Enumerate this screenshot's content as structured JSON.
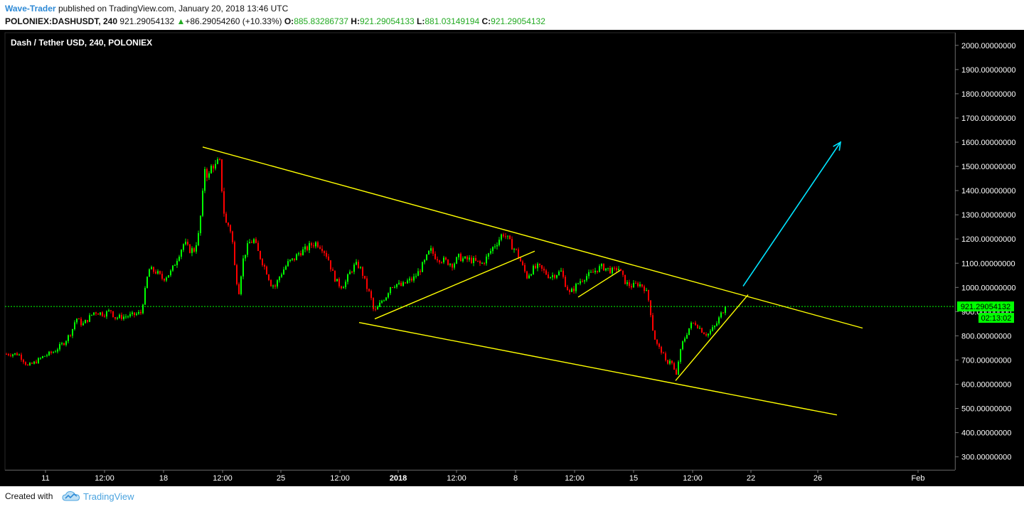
{
  "header": {
    "author": "Wave-Trader",
    "published_text": "published on TradingView.com, January 20, 2018 13:46 UTC",
    "symbol": "POLONIEX:DASHUSDT, 240",
    "last": "921.29054132",
    "change_arrow": "▲",
    "change": "+86.29054260 (+10.33%)",
    "open_label": "O:",
    "open": "885.83286737",
    "high_label": "H:",
    "high": "921.29054133",
    "low_label": "L:",
    "low": "881.03149194",
    "close_label": "C:",
    "close": "921.29054132"
  },
  "chart_data": {
    "type": "candlestick",
    "title": "Dash / Tether USD, 240, POLONIEX",
    "timeframe": "240",
    "x_ticks": [
      "11",
      "12:00",
      "18",
      "12:00",
      "25",
      "12:00",
      "2018",
      "12:00",
      "8",
      "12:00",
      "15",
      "12:00",
      "22",
      "26",
      "Feb"
    ],
    "y_ticks": [
      "300.00000000",
      "400.00000000",
      "500.00000000",
      "600.00000000",
      "700.00000000",
      "800.00000000",
      "900.00000000",
      "1000.00000000",
      "1100.00000000",
      "1200.00000000",
      "1300.00000000",
      "1400.00000000",
      "1500.00000000",
      "1600.00000000",
      "1700.00000000",
      "1800.00000000",
      "1900.00000000",
      "2000.00000000"
    ],
    "ylim": [
      220,
      2030
    ],
    "grid": false,
    "last_price": 921.29054132,
    "last_price_label": "921.29054132",
    "countdown_label": "02:13:02",
    "price_path_xy": [
      [
        8,
        725
      ],
      [
        25,
        725
      ],
      [
        38,
        675
      ],
      [
        48,
        690
      ],
      [
        60,
        715
      ],
      [
        75,
        735
      ],
      [
        90,
        775
      ],
      [
        100,
        820
      ],
      [
        106,
        875
      ],
      [
        115,
        845
      ],
      [
        132,
        900
      ],
      [
        145,
        890
      ],
      [
        155,
        905
      ],
      [
        160,
        875
      ],
      [
        175,
        880
      ],
      [
        185,
        885
      ],
      [
        197,
        895
      ],
      [
        203,
        985
      ],
      [
        208,
        1075
      ],
      [
        218,
        1065
      ],
      [
        228,
        1035
      ],
      [
        240,
        1065
      ],
      [
        250,
        1135
      ],
      [
        258,
        1185
      ],
      [
        265,
        1155
      ],
      [
        272,
        1155
      ],
      [
        278,
        1215
      ],
      [
        283,
        1345
      ],
      [
        287,
        1495
      ],
      [
        292,
        1450
      ],
      [
        297,
        1510
      ],
      [
        302,
        1500
      ],
      [
        306,
        1520
      ],
      [
        309,
        1510
      ],
      [
        312,
        1355
      ],
      [
        316,
        1265
      ],
      [
        322,
        1255
      ],
      [
        326,
        1185
      ],
      [
        330,
        1055
      ],
      [
        335,
        985
      ],
      [
        340,
        1105
      ],
      [
        345,
        1155
      ],
      [
        350,
        1185
      ],
      [
        356,
        1195
      ],
      [
        362,
        1145
      ],
      [
        368,
        1105
      ],
      [
        374,
        1065
      ],
      [
        380,
        1015
      ],
      [
        386,
        1005
      ],
      [
        392,
        1045
      ],
      [
        398,
        1075
      ],
      [
        405,
        1105
      ],
      [
        412,
        1115
      ],
      [
        420,
        1145
      ],
      [
        428,
        1155
      ],
      [
        436,
        1175
      ],
      [
        444,
        1185
      ],
      [
        452,
        1165
      ],
      [
        460,
        1125
      ],
      [
        466,
        1065
      ],
      [
        472,
        1025
      ],
      [
        478,
        1005
      ],
      [
        484,
        1015
      ],
      [
        490,
        1055
      ],
      [
        496,
        1085
      ],
      [
        502,
        1095
      ],
      [
        508,
        1065
      ],
      [
        514,
        1005
      ],
      [
        520,
        965
      ],
      [
        525,
        895
      ],
      [
        530,
        915
      ],
      [
        536,
        945
      ],
      [
        542,
        965
      ],
      [
        548,
        1005
      ],
      [
        556,
        1015
      ],
      [
        564,
        1005
      ],
      [
        572,
        1025
      ],
      [
        580,
        1035
      ],
      [
        588,
        1065
      ],
      [
        596,
        1105
      ],
      [
        604,
        1155
      ],
      [
        612,
        1125
      ],
      [
        620,
        1115
      ],
      [
        628,
        1105
      ],
      [
        636,
        1095
      ],
      [
        644,
        1125
      ],
      [
        652,
        1115
      ],
      [
        660,
        1115
      ],
      [
        668,
        1105
      ],
      [
        676,
        1095
      ],
      [
        684,
        1125
      ],
      [
        692,
        1165
      ],
      [
        700,
        1195
      ],
      [
        706,
        1225
      ],
      [
        712,
        1205
      ],
      [
        718,
        1175
      ],
      [
        726,
        1145
      ],
      [
        734,
        1085
      ],
      [
        740,
        1045
      ],
      [
        748,
        1075
      ],
      [
        756,
        1085
      ],
      [
        764,
        1065
      ],
      [
        772,
        1045
      ],
      [
        780,
        1055
      ],
      [
        788,
        1065
      ],
      [
        794,
        1015
      ],
      [
        800,
        975
      ],
      [
        806,
        995
      ],
      [
        814,
        1025
      ],
      [
        822,
        1045
      ],
      [
        830,
        1055
      ],
      [
        838,
        1075
      ],
      [
        846,
        1085
      ],
      [
        854,
        1075
      ],
      [
        862,
        1065
      ],
      [
        868,
        1085
      ],
      [
        874,
        1045
      ],
      [
        880,
        1015
      ],
      [
        888,
        1005
      ],
      [
        896,
        1015
      ],
      [
        904,
        1005
      ],
      [
        910,
        965
      ],
      [
        914,
        895
      ],
      [
        918,
        805
      ],
      [
        924,
        755
      ],
      [
        930,
        735
      ],
      [
        936,
        685
      ],
      [
        942,
        705
      ],
      [
        946,
        665
      ],
      [
        950,
        635
      ],
      [
        953,
        695
      ],
      [
        958,
        765
      ],
      [
        964,
        805
      ],
      [
        970,
        845
      ],
      [
        976,
        855
      ],
      [
        982,
        835
      ],
      [
        988,
        815
      ],
      [
        994,
        805
      ],
      [
        1000,
        825
      ],
      [
        1006,
        845
      ],
      [
        1012,
        885
      ],
      [
        1016,
        905
      ],
      [
        1021,
        921
      ]
    ],
    "annotations": [
      {
        "type": "trendline",
        "color": "#ffff00",
        "points": [
          [
            285,
            1580
          ],
          [
            1213,
            832
          ]
        ]
      },
      {
        "type": "trendline",
        "color": "#ffff00",
        "points": [
          [
            505,
            855
          ],
          [
            1177,
            473
          ]
        ]
      },
      {
        "type": "trendline",
        "color": "#ffff00",
        "points": [
          [
            527,
            870
          ],
          [
            752,
            1150
          ]
        ]
      },
      {
        "type": "trendline",
        "color": "#ffff00",
        "points": [
          [
            813,
            960
          ],
          [
            872,
            1070
          ]
        ]
      },
      {
        "type": "trendline",
        "color": "#ffff00",
        "points": [
          [
            950,
            615
          ],
          [
            1052,
            970
          ]
        ]
      },
      {
        "type": "arrow",
        "color": "#00e5ff",
        "points": [
          [
            1045,
            1005
          ],
          [
            1182,
            1600
          ]
        ]
      }
    ],
    "colors": {
      "background": "#000000",
      "up": "#00ff00",
      "down": "#ff0000",
      "trendline": "#ffff00",
      "arrow": "#00e5ff",
      "price_line": "#00ff00",
      "price_label": "#00ff00",
      "axis_text": "#ffffff"
    }
  },
  "footer": {
    "created_with": "Created with",
    "brand": "TradingView",
    "logo_icon": "tradingview-cloud-icon"
  }
}
